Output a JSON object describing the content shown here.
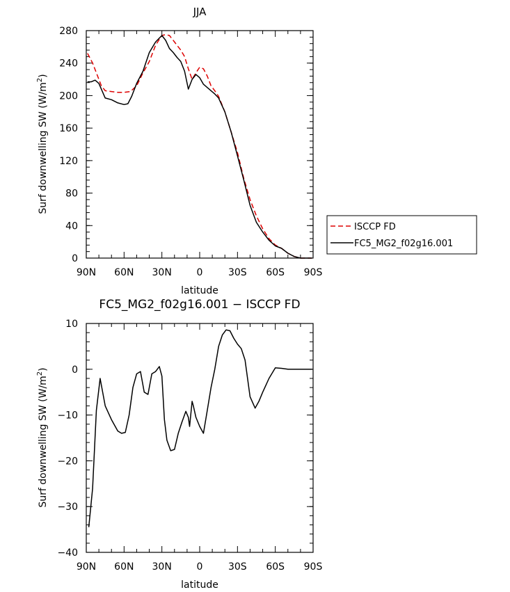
{
  "chart_data": [
    {
      "type": "line",
      "title": "JJA",
      "xlabel": "latitude",
      "ylabel": "Surf downwelling SW (W/m²)",
      "ylabel_parts": {
        "text": "Surf downwelling SW (W/m",
        "sup": "2",
        "close": ")"
      },
      "xlim": [
        90,
        -90
      ],
      "ylim": [
        0,
        280
      ],
      "x_ticks": [
        90,
        60,
        30,
        0,
        -30,
        -60,
        -90
      ],
      "x_tick_labels": [
        "90N",
        "60N",
        "30N",
        "0",
        "30S",
        "60S",
        "90S"
      ],
      "y_ticks": [
        0,
        40,
        80,
        120,
        160,
        200,
        240,
        280
      ],
      "y_tick_labels": [
        "0",
        "40",
        "80",
        "120",
        "160",
        "200",
        "240",
        "280"
      ],
      "legend": {
        "placement": "right-outside",
        "entries": [
          "ISCCP FD",
          "FC5_MG2_f02g16.001"
        ]
      },
      "series": [
        {
          "name": "ISCCP FD",
          "color": "#dd0000",
          "style": "dashed",
          "x": [
            89,
            85,
            81,
            78,
            75,
            70,
            65,
            60,
            55,
            50,
            45,
            40,
            35,
            30,
            27,
            24,
            21,
            18,
            15,
            12,
            9,
            6,
            3,
            0,
            -3,
            -6,
            -9,
            -12,
            -15,
            -20,
            -25,
            -30,
            -35,
            -40,
            -45,
            -50,
            -55,
            -60,
            -65,
            -70,
            -75,
            -80,
            -85,
            -89
          ],
          "y": [
            252,
            240,
            224,
            212,
            206,
            205,
            204,
            204,
            205,
            212,
            228,
            242,
            262,
            274,
            275,
            274,
            268,
            262,
            256,
            248,
            233,
            220,
            228,
            235,
            233,
            224,
            212,
            206,
            199,
            180,
            155,
            130,
            98,
            72,
            52,
            36,
            24,
            16,
            12,
            6,
            2,
            0,
            0,
            0
          ]
        },
        {
          "name": "FC5_MG2_f02g16.001",
          "color": "#000000",
          "style": "solid",
          "x": [
            89,
            86,
            83,
            80,
            75,
            70,
            65,
            60,
            57,
            54,
            50,
            45,
            40,
            35,
            30,
            27,
            24,
            21,
            18,
            15,
            12,
            9,
            6,
            3,
            0,
            -3,
            -6,
            -9,
            -12,
            -15,
            -20,
            -25,
            -30,
            -35,
            -40,
            -45,
            -50,
            -55,
            -60,
            -65,
            -70,
            -75,
            -80,
            -85,
            -89
          ],
          "y": [
            217,
            217,
            219,
            215,
            197,
            195,
            191,
            189,
            190,
            199,
            215,
            230,
            253,
            266,
            274,
            268,
            258,
            253,
            247,
            242,
            230,
            208,
            220,
            226,
            222,
            214,
            210,
            206,
            202,
            197,
            180,
            155,
            126,
            96,
            65,
            44,
            32,
            22,
            15,
            12,
            6,
            2,
            0,
            0,
            0
          ]
        }
      ]
    },
    {
      "type": "line",
      "title": "FC5_MG2_f02g16.001 − ISCCP FD",
      "xlabel": "latitude",
      "ylabel": "Surf downwelling SW (W/m²)",
      "ylabel_parts": {
        "text": "Surf downwelling SW (W/m",
        "sup": "2",
        "close": ")"
      },
      "xlim": [
        90,
        -90
      ],
      "ylim": [
        -40,
        10
      ],
      "x_ticks": [
        90,
        60,
        30,
        0,
        -30,
        -60,
        -90
      ],
      "x_tick_labels": [
        "90N",
        "60N",
        "30N",
        "0",
        "30S",
        "60S",
        "90S"
      ],
      "y_ticks": [
        -40,
        -30,
        -20,
        -10,
        0,
        10
      ],
      "y_tick_labels": [
        "−40",
        "−30",
        "−20",
        "−10",
        "0",
        "10"
      ],
      "series": [
        {
          "color": "#000000",
          "style": "solid",
          "x": [
            88,
            85,
            82,
            79,
            75,
            70,
            65,
            62,
            59,
            56,
            53,
            50,
            47,
            44,
            41,
            38,
            35,
            32,
            30,
            28,
            26,
            23,
            20,
            17,
            14,
            11,
            9,
            8,
            6,
            5,
            3,
            0,
            -3,
            -6,
            -9,
            -12,
            -15,
            -18,
            -21,
            -24,
            -27,
            -30,
            -33,
            -36,
            -40,
            -44,
            -47,
            -50,
            -55,
            -60,
            -65,
            -70,
            -75,
            -80,
            -85,
            -89
          ],
          "y": [
            -34.5,
            -26,
            -9,
            -2,
            -8,
            -11,
            -13.5,
            -14,
            -13.8,
            -10,
            -4,
            -1,
            -0.5,
            -5,
            -5.5,
            -1,
            -0.5,
            0.6,
            -1.5,
            -11,
            -15.5,
            -17.8,
            -17.5,
            -14,
            -11.5,
            -9.2,
            -10.5,
            -12.5,
            -7,
            -8,
            -10.5,
            -12.5,
            -14,
            -9,
            -4,
            0,
            5,
            7.5,
            8.6,
            8.4,
            6.8,
            5.5,
            4.5,
            2,
            -6,
            -8.5,
            -7,
            -5,
            -2,
            0.3,
            0.2,
            0,
            0,
            0,
            0,
            0
          ]
        }
      ]
    }
  ]
}
